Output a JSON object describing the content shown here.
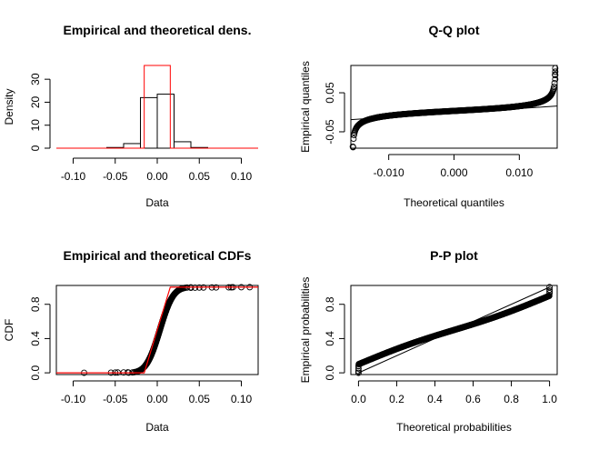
{
  "colors": {
    "axis": "#000000",
    "fit": "#ff0000",
    "points": "#000000"
  },
  "chart_data": [
    {
      "type": "bar",
      "title": "Empirical and theoretical dens.",
      "xlabel": "Data",
      "ylabel": "Density",
      "xlim": [
        -0.12,
        0.12
      ],
      "ylim": [
        0,
        36
      ],
      "xticks": [
        -0.1,
        -0.05,
        0.0,
        0.05,
        0.1
      ],
      "xtick_labels": [
        "-0.10",
        "-0.05",
        "0.00",
        "0.05",
        "0.10"
      ],
      "yticks": [
        0,
        10,
        20,
        30
      ],
      "ytick_labels": [
        "0",
        "10",
        "20",
        "30"
      ],
      "histogram_bins": [
        {
          "x0": -0.09,
          "x1": -0.06,
          "value": 0.0
        },
        {
          "x0": -0.06,
          "x1": -0.04,
          "value": 0.3
        },
        {
          "x0": -0.04,
          "x1": -0.02,
          "value": 2.0
        },
        {
          "x0": -0.02,
          "x1": 0.0,
          "value": 22.0
        },
        {
          "x0": 0.0,
          "x1": 0.02,
          "value": 23.5
        },
        {
          "x0": 0.02,
          "x1": 0.04,
          "value": 2.8
        },
        {
          "x0": 0.04,
          "x1": 0.06,
          "value": 0.3
        }
      ],
      "fitted_density": {
        "x": [
          -0.12,
          -0.0155,
          -0.0155,
          0.0155,
          0.0155,
          0.12
        ],
        "y": [
          0,
          0,
          36.0,
          36.0,
          0,
          0
        ]
      }
    },
    {
      "type": "scatter",
      "title": "Q-Q plot",
      "xlabel": "Theoretical quantiles",
      "ylabel": "Empirical quantiles",
      "xlim": [
        -0.0158,
        0.0158
      ],
      "ylim": [
        -0.092,
        0.12
      ],
      "xticks": [
        -0.01,
        0.0,
        0.01
      ],
      "xtick_labels": [
        "-0.010",
        "0.000",
        "0.010"
      ],
      "yticks": [
        -0.05,
        0.05
      ],
      "ytick_labels": [
        "-0.05",
        "0.05"
      ],
      "reference_line": {
        "x": [
          -0.0158,
          0.0158
        ],
        "y": [
          -0.019,
          0.016
        ]
      }
    },
    {
      "type": "scatter",
      "title": "Empirical and theoretical CDFs",
      "xlabel": "Data",
      "ylabel": "CDF",
      "xlim": [
        -0.12,
        0.12
      ],
      "ylim": [
        -0.02,
        1.02
      ],
      "xticks": [
        -0.1,
        -0.05,
        0.0,
        0.05,
        0.1
      ],
      "xtick_labels": [
        "-0.10",
        "-0.05",
        "0.00",
        "0.05",
        "0.10"
      ],
      "yticks": [
        0.0,
        0.4,
        0.8
      ],
      "ytick_labels": [
        "0.0",
        "0.4",
        "0.8"
      ],
      "fitted_cdf": {
        "x": [
          -0.12,
          -0.0155,
          0.0155,
          0.12
        ],
        "y": [
          0,
          0,
          1,
          1
        ]
      },
      "outlier_points": {
        "x": [
          -0.087,
          -0.055,
          -0.05,
          -0.047,
          -0.04,
          -0.035,
          0.04,
          0.045,
          0.05,
          0.055,
          0.065,
          0.07,
          0.085,
          0.088,
          0.09,
          0.1,
          0.11
        ],
        "y": [
          0.001,
          0.002,
          0.003,
          0.004,
          0.005,
          0.006,
          0.993,
          0.994,
          0.995,
          0.996,
          0.997,
          0.997,
          0.998,
          0.998,
          0.999,
          0.999,
          1.0
        ]
      }
    },
    {
      "type": "scatter",
      "title": "P-P plot",
      "xlabel": "Theoretical probabilities",
      "ylabel": "Empirical probabilities",
      "xlim": [
        -0.04,
        1.04
      ],
      "ylim": [
        -0.02,
        1.02
      ],
      "xticks": [
        0.0,
        0.2,
        0.4,
        0.6,
        0.8,
        1.0
      ],
      "xtick_labels": [
        "0.0",
        "0.2",
        "0.4",
        "0.6",
        "0.8",
        "1.0"
      ],
      "yticks": [
        0.0,
        0.4,
        0.8
      ],
      "ytick_labels": [
        "0.0",
        "0.4",
        "0.8"
      ],
      "reference_line": {
        "x": [
          0,
          1
        ],
        "y": [
          0,
          1
        ]
      }
    }
  ]
}
